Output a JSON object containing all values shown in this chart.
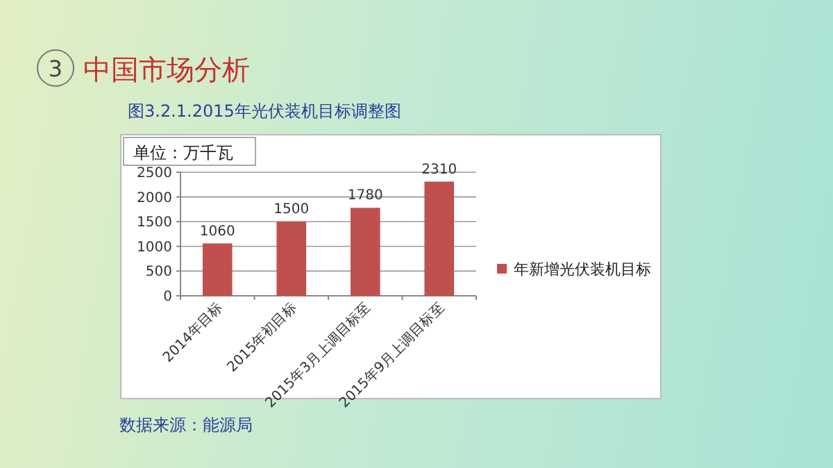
{
  "chart_data": {
    "type": "bar",
    "title": "中国市场分析",
    "subtitle": "图3.2.1.2015年光伏装机目标调整图",
    "ylabel": "单位：万千瓦",
    "annotations": [
      "3",
      "数据来源：能源局"
    ],
    "categories": [
      "2014年目标",
      "2015年初目标",
      "2015年3月上调目标至",
      "2015年9月上调目标至"
    ],
    "series": [
      {
        "name": "年新增光伏装机目标",
        "color": "#c0504d",
        "values": [
          1060,
          1500,
          1780,
          2310
        ]
      }
    ],
    "ylim": [
      0,
      2500
    ],
    "yticks": [
      0,
      500,
      1000,
      1500,
      2000,
      2500
    ],
    "grid": "y",
    "legend": "right",
    "data_labels": true
  }
}
